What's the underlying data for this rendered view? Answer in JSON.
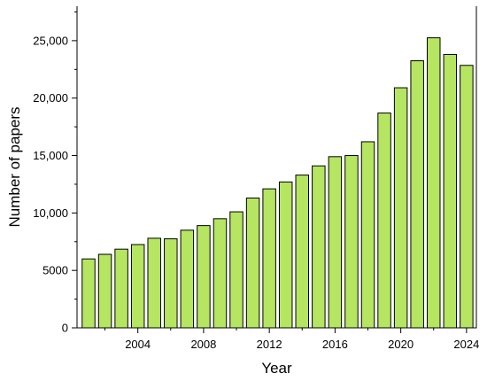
{
  "chart_data": {
    "type": "bar",
    "title": "",
    "xlabel": "Year",
    "ylabel": "Number of papers",
    "x": [
      2001,
      2002,
      2003,
      2004,
      2005,
      2006,
      2007,
      2008,
      2009,
      2010,
      2011,
      2012,
      2013,
      2014,
      2015,
      2016,
      2017,
      2018,
      2019,
      2020,
      2021,
      2022,
      2023,
      2024
    ],
    "values": [
      6000,
      6400,
      6850,
      7250,
      7800,
      7750,
      8500,
      8900,
      9500,
      10100,
      11300,
      12100,
      12700,
      13300,
      14100,
      14900,
      15000,
      16200,
      18700,
      20900,
      23250,
      25250,
      23800,
      22850
    ],
    "ylim": [
      0,
      28000
    ],
    "xlim": [
      2000.3,
      2024.6
    ],
    "y_ticks": [
      {
        "value": 0,
        "label": "0"
      },
      {
        "value": 5000,
        "label": "5000"
      },
      {
        "value": 10000,
        "label": "10,000"
      },
      {
        "value": 15000,
        "label": "15,000"
      },
      {
        "value": 20000,
        "label": "20,000"
      },
      {
        "value": 25000,
        "label": "25,000"
      }
    ],
    "x_ticks": [
      {
        "value": 2004,
        "label": "2004"
      },
      {
        "value": 2008,
        "label": "2008"
      },
      {
        "value": 2012,
        "label": "2012"
      },
      {
        "value": 2016,
        "label": "2016"
      },
      {
        "value": 2020,
        "label": "2020"
      },
      {
        "value": 2024,
        "label": "2024"
      }
    ],
    "bar_color": "#b5e561",
    "grid": false,
    "legend": "none"
  }
}
